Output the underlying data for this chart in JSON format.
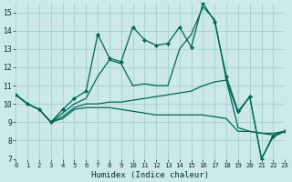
{
  "xlabel": "Humidex (Indice chaleur)",
  "background_color": "#cce8e8",
  "grid_color": "#99cccc",
  "line_color": "#006655",
  "xlim": [
    0,
    23
  ],
  "ylim": [
    7,
    15.5
  ],
  "yticks": [
    7,
    8,
    9,
    10,
    11,
    12,
    13,
    14,
    15
  ],
  "xticks": [
    0,
    1,
    2,
    3,
    4,
    5,
    6,
    7,
    8,
    9,
    10,
    11,
    12,
    13,
    14,
    15,
    16,
    17,
    18,
    19,
    20,
    21,
    22,
    23
  ],
  "line_main_x": [
    0,
    1,
    2,
    3,
    4,
    5,
    6,
    7,
    8,
    9,
    10,
    11,
    12,
    13,
    14,
    15,
    16,
    17,
    18,
    19,
    20,
    21,
    22,
    23
  ],
  "line_main_y": [
    10.5,
    10.0,
    9.7,
    9.0,
    9.7,
    10.3,
    10.7,
    13.8,
    12.5,
    12.3,
    14.2,
    13.5,
    13.2,
    13.3,
    14.2,
    13.1,
    15.5,
    14.5,
    11.5,
    9.6,
    10.4,
    7.0,
    8.2,
    8.5
  ],
  "line2_y": [
    10.5,
    10.0,
    9.7,
    9.0,
    9.5,
    10.0,
    10.3,
    11.5,
    12.4,
    12.2,
    11.0,
    11.1,
    11.0,
    11.0,
    13.0,
    13.8,
    15.3,
    14.6,
    11.3,
    9.5,
    10.4,
    7.0,
    8.3,
    8.5
  ],
  "line3_y": [
    10.5,
    10.0,
    9.7,
    9.0,
    9.3,
    9.8,
    10.0,
    10.0,
    10.1,
    10.1,
    10.2,
    10.3,
    10.4,
    10.5,
    10.6,
    10.7,
    11.0,
    11.2,
    11.3,
    8.7,
    8.5,
    8.4,
    8.3,
    8.5
  ],
  "line4_y": [
    10.5,
    10.0,
    9.7,
    9.0,
    9.2,
    9.7,
    9.8,
    9.8,
    9.8,
    9.7,
    9.6,
    9.5,
    9.4,
    9.4,
    9.4,
    9.4,
    9.4,
    9.3,
    9.2,
    8.5,
    8.5,
    8.4,
    8.4,
    8.5
  ]
}
